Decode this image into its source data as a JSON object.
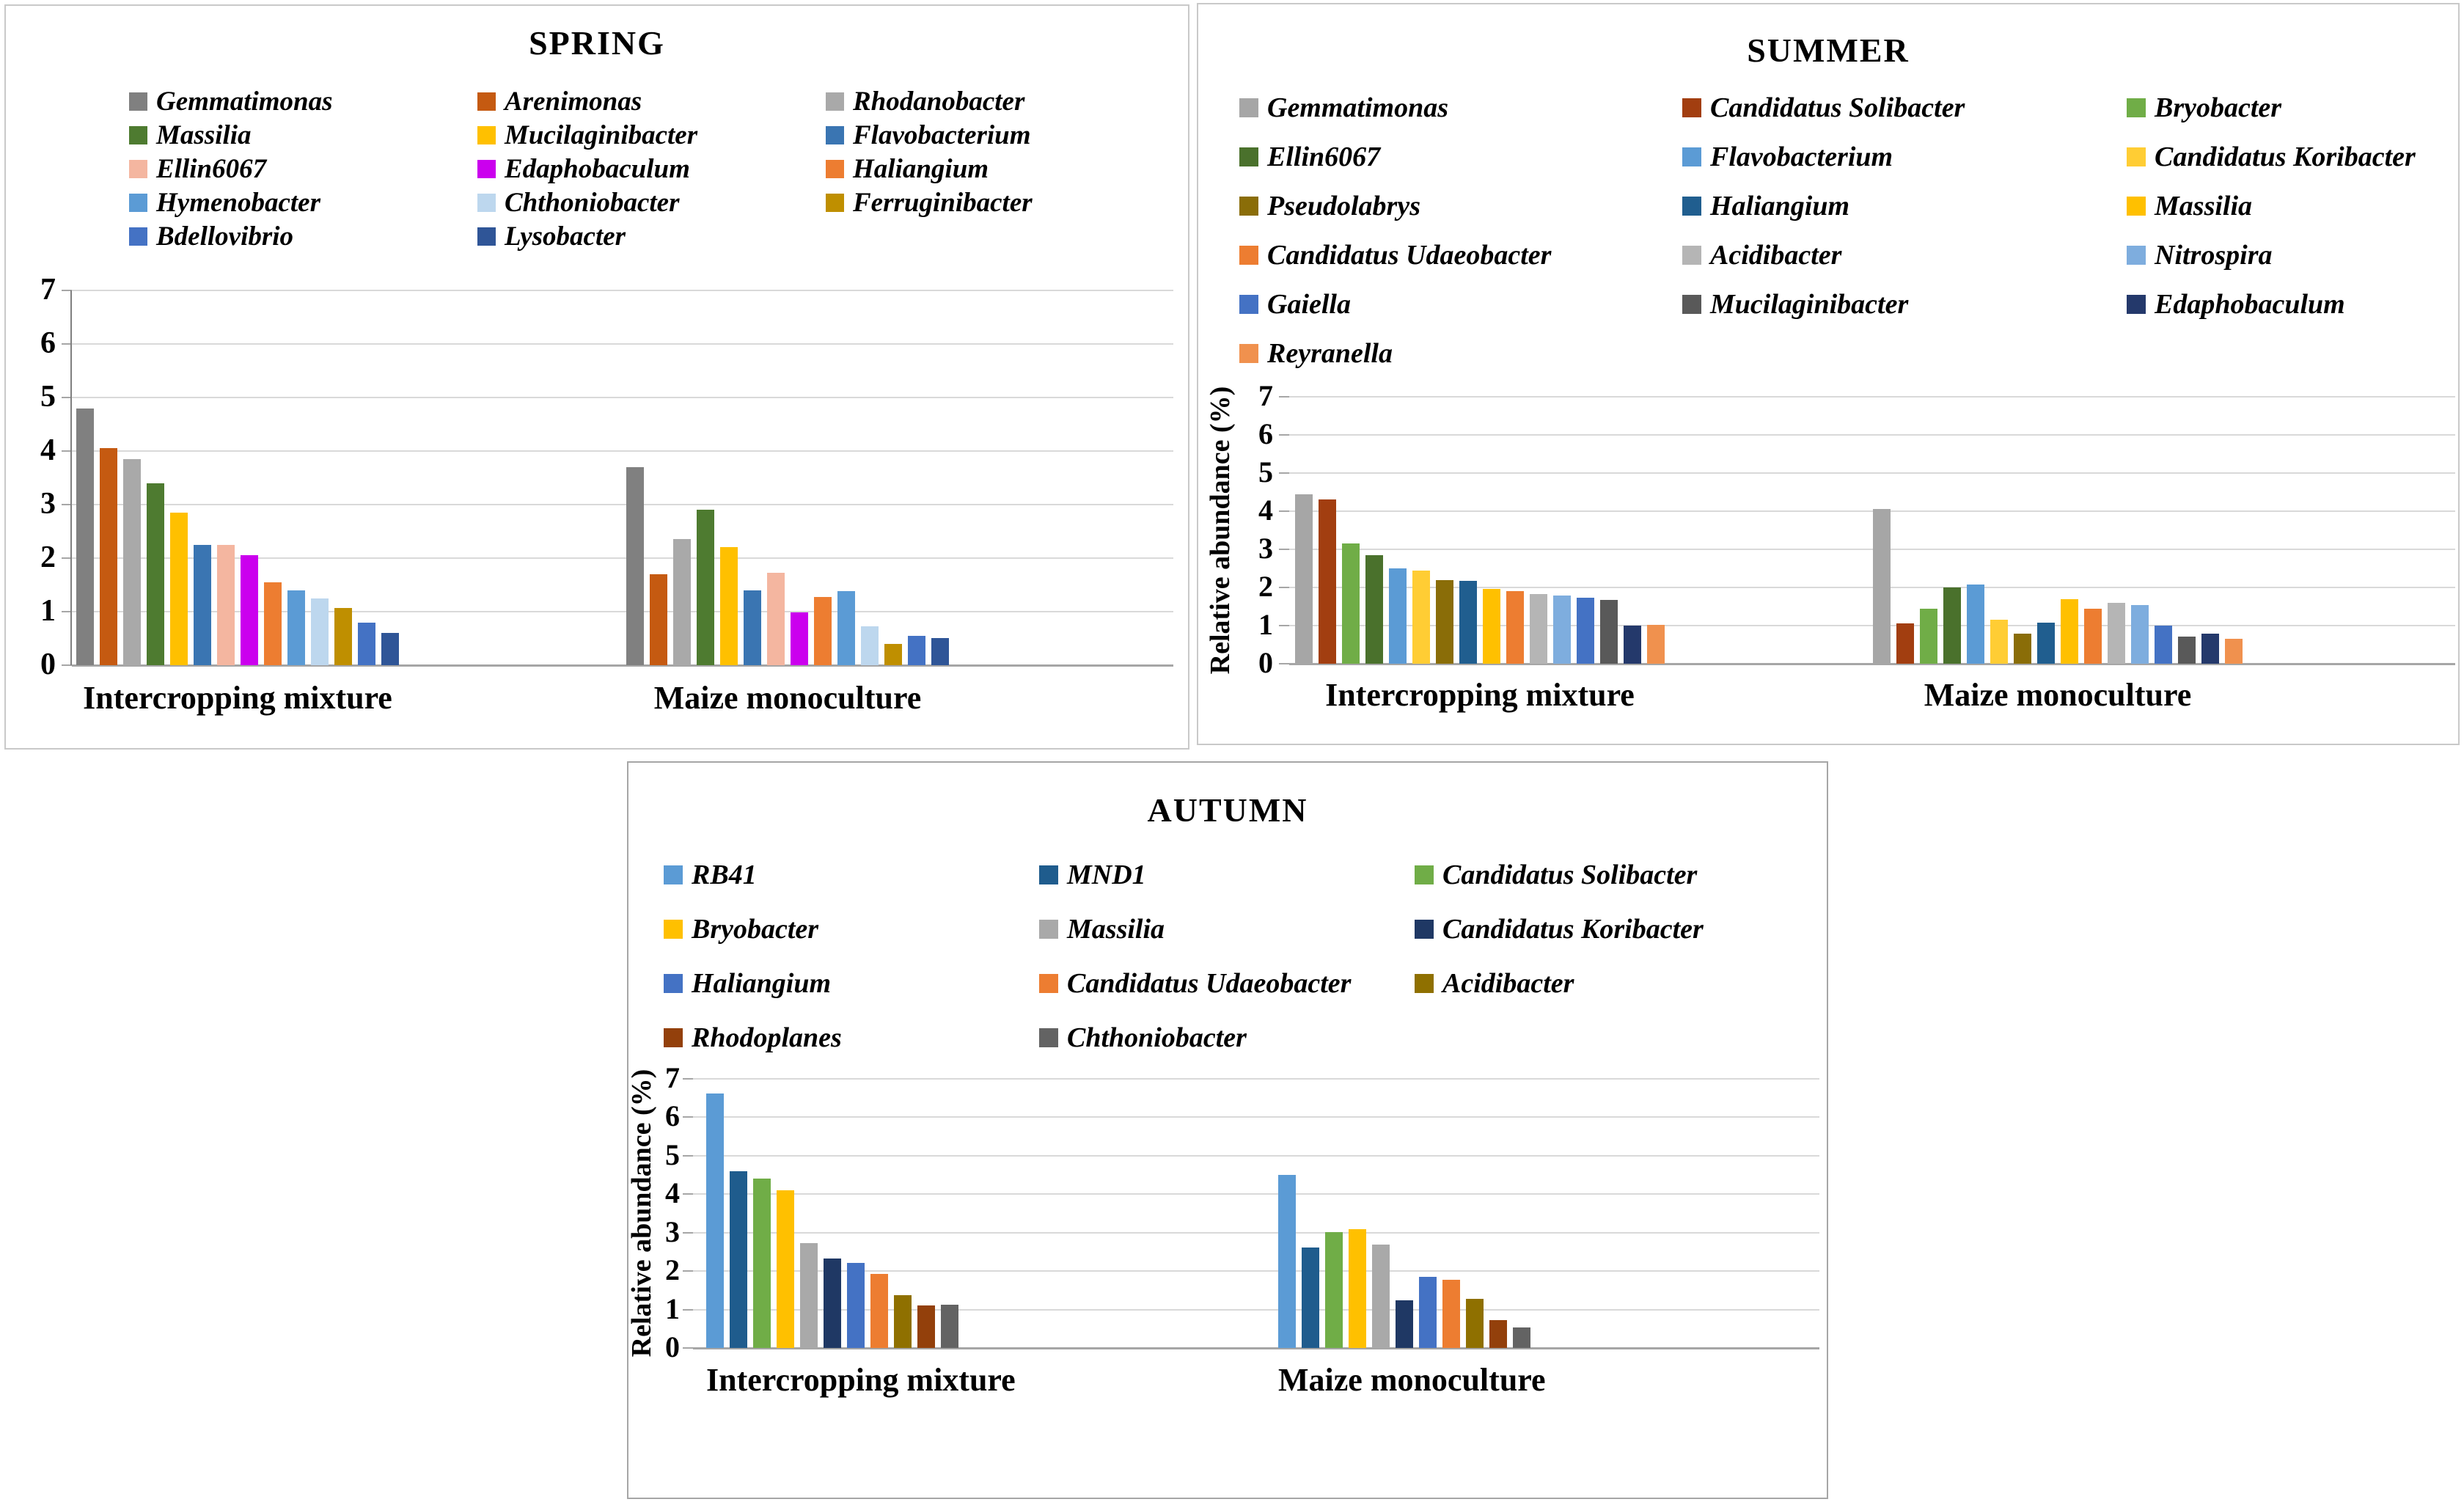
{
  "figure": {
    "y_axis_label": "Relative abundance (%)",
    "yticks": [
      0,
      1,
      2,
      3,
      4,
      5,
      6,
      7
    ],
    "categories": [
      "Intercropping mixture",
      "Maize monoculture"
    ]
  },
  "chart_data": [
    {
      "type": "bar",
      "title": "SPRING",
      "xlabel": "",
      "ylabel": "",
      "ylim": [
        0,
        7
      ],
      "grid": true,
      "legend_position": "top",
      "categories": [
        "Intercropping mixture",
        "Maize monoculture"
      ],
      "series": [
        {
          "name": "Gemmatimonas",
          "color": "#808080",
          "values": [
            4.8,
            3.7
          ]
        },
        {
          "name": "Arenimonas",
          "color": "#C55A11",
          "values": [
            4.05,
            1.7
          ]
        },
        {
          "name": "Rhodanobacter",
          "color": "#A9A9A9",
          "values": [
            3.85,
            2.35
          ]
        },
        {
          "name": "Massilia",
          "color": "#4E7B30",
          "values": [
            3.4,
            2.9
          ]
        },
        {
          "name": "Mucilaginibacter",
          "color": "#FFC000",
          "values": [
            2.85,
            2.2
          ]
        },
        {
          "name": "Flavobacterium",
          "color": "#3A75B2",
          "values": [
            2.25,
            1.4
          ]
        },
        {
          "name": "Ellin6067",
          "color": "#F4B6A0",
          "values": [
            2.25,
            1.72
          ]
        },
        {
          "name": "Edaphobaculum",
          "color": "#CB00EE",
          "values": [
            2.05,
            0.98
          ]
        },
        {
          "name": "Haliangium",
          "color": "#ED7D31",
          "values": [
            1.55,
            1.28
          ]
        },
        {
          "name": "Hymenobacter",
          "color": "#5B9BD5",
          "values": [
            1.4,
            1.38
          ]
        },
        {
          "name": "Chthoniobacter",
          "color": "#BDD7EE",
          "values": [
            1.25,
            0.73
          ]
        },
        {
          "name": "Ferruginibacter",
          "color": "#BF8F00",
          "values": [
            1.07,
            0.4
          ]
        },
        {
          "name": "Bdellovibrio",
          "color": "#4472C4",
          "values": [
            0.8,
            0.55
          ]
        },
        {
          "name": "Lysobacter",
          "color": "#2F5597",
          "values": [
            0.6,
            0.5
          ]
        }
      ]
    },
    {
      "type": "bar",
      "title": "SUMMER",
      "xlabel": "",
      "ylabel": "Relative abundance (%)",
      "ylim": [
        0,
        7
      ],
      "grid": true,
      "legend_position": "top",
      "categories": [
        "Intercropping mixture",
        "Maize monoculture"
      ],
      "series": [
        {
          "name": "Gemmatimonas",
          "color": "#A6A6A6",
          "values": [
            4.45,
            4.05
          ]
        },
        {
          "name": "Candidatus Solibacter",
          "color": "#A23E10",
          "values": [
            4.3,
            1.05
          ]
        },
        {
          "name": "Bryobacter",
          "color": "#70AD47",
          "values": [
            3.15,
            1.45
          ]
        },
        {
          "name": "Ellin6067",
          "color": "#4A712C",
          "values": [
            2.85,
            2.0
          ]
        },
        {
          "name": "Flavobacterium",
          "color": "#5B9BD5",
          "values": [
            2.5,
            2.08
          ]
        },
        {
          "name": "Candidatus Koribacter",
          "color": "#FFCD34",
          "values": [
            2.45,
            1.15
          ]
        },
        {
          "name": "Pseudolabrys",
          "color": "#8A6D08",
          "values": [
            2.2,
            0.78
          ]
        },
        {
          "name": "Haliangium",
          "color": "#205E8F",
          "values": [
            2.18,
            1.08
          ]
        },
        {
          "name": "Massilia",
          "color": "#FFC000",
          "values": [
            1.97,
            1.7
          ]
        },
        {
          "name": "Candidatus Udaeobacter",
          "color": "#ED7D31",
          "values": [
            1.9,
            1.45
          ]
        },
        {
          "name": "Acidibacter",
          "color": "#B5B5B5",
          "values": [
            1.83,
            1.6
          ]
        },
        {
          "name": "Nitrospira",
          "color": "#7EADDE",
          "values": [
            1.78,
            1.53
          ]
        },
        {
          "name": "Gaiella",
          "color": "#4472C4",
          "values": [
            1.73,
            1.0
          ]
        },
        {
          "name": "Mucilaginibacter",
          "color": "#595959",
          "values": [
            1.68,
            0.72
          ]
        },
        {
          "name": "Edaphobaculum",
          "color": "#24396B",
          "values": [
            1.0,
            0.78
          ]
        },
        {
          "name": "Reyranella",
          "color": "#F0914E",
          "values": [
            1.02,
            0.66
          ]
        }
      ]
    },
    {
      "type": "bar",
      "title": "AUTUMN",
      "xlabel": "",
      "ylabel": "Relative abundance (%)",
      "ylim": [
        0,
        7
      ],
      "grid": true,
      "legend_position": "top",
      "categories": [
        "Intercropping mixture",
        "Maize monoculture"
      ],
      "series": [
        {
          "name": "RB41",
          "color": "#5B9BD5",
          "values": [
            6.6,
            4.5
          ]
        },
        {
          "name": "MND1",
          "color": "#1F5C8D",
          "values": [
            4.6,
            2.61
          ]
        },
        {
          "name": "Candidatus Solibacter",
          "color": "#70AD47",
          "values": [
            4.4,
            3.0
          ]
        },
        {
          "name": "Bryobacter",
          "color": "#FFC000",
          "values": [
            4.1,
            3.08
          ]
        },
        {
          "name": "Massilia",
          "color": "#A9A9A9",
          "values": [
            2.72,
            2.68
          ]
        },
        {
          "name": "Candidatus Koribacter",
          "color": "#1F3864",
          "values": [
            2.33,
            1.23
          ]
        },
        {
          "name": "Haliangium",
          "color": "#4472C4",
          "values": [
            2.2,
            1.85
          ]
        },
        {
          "name": "Candidatus Udaeobacter",
          "color": "#ED7D31",
          "values": [
            1.93,
            1.78
          ]
        },
        {
          "name": "Acidibacter",
          "color": "#8F7000",
          "values": [
            1.37,
            1.28
          ]
        },
        {
          "name": "Rhodoplanes",
          "color": "#93400B",
          "values": [
            1.1,
            0.72
          ]
        },
        {
          "name": "Chthoniobacter",
          "color": "#636363",
          "values": [
            1.13,
            0.53
          ]
        }
      ]
    }
  ]
}
